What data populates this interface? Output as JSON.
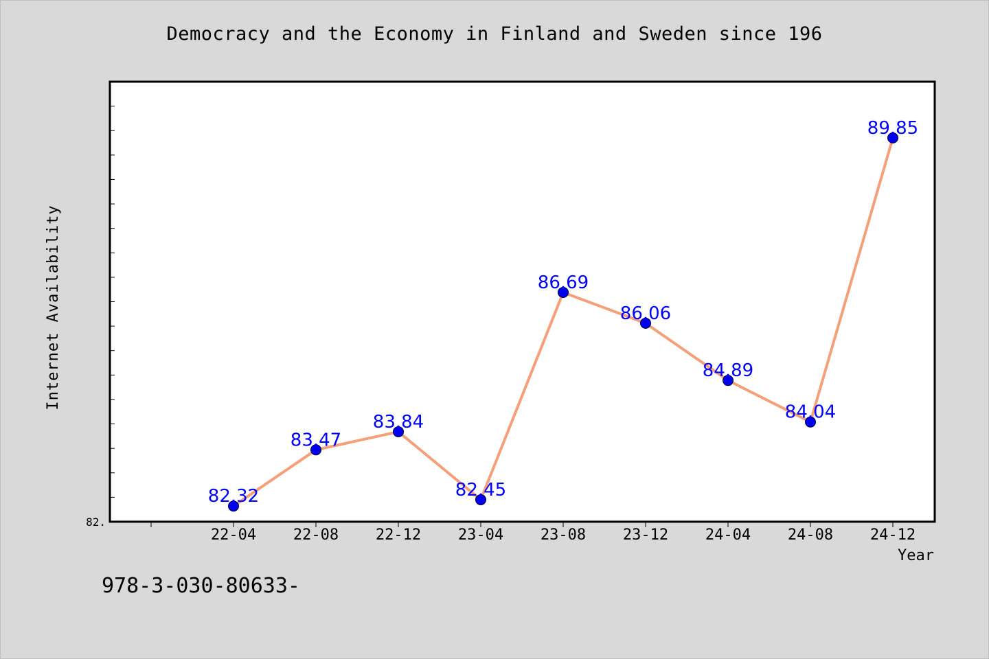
{
  "chart_data": {
    "type": "line",
    "title": "Democracy and the Economy in Finland and Sweden since 196",
    "xlabel": "Year",
    "ylabel": "Internet Availability",
    "categories": [
      "22-04",
      "22-08",
      "22-12",
      "23-04",
      "23-08",
      "23-12",
      "24-04",
      "24-08",
      "24-12"
    ],
    "series": [
      {
        "values": [
          82.32,
          83.47,
          83.84,
          82.45,
          86.69,
          86.06,
          84.89,
          84.04,
          89.85
        ]
      }
    ],
    "y_tick_label": "82.",
    "ylim": [
      82.0,
      91.0
    ],
    "grid": false,
    "line_color": "#f4a07a",
    "marker_color": "#0000ee",
    "label_color": "#0000ff"
  },
  "footer_text": "978-3-030-80633-"
}
